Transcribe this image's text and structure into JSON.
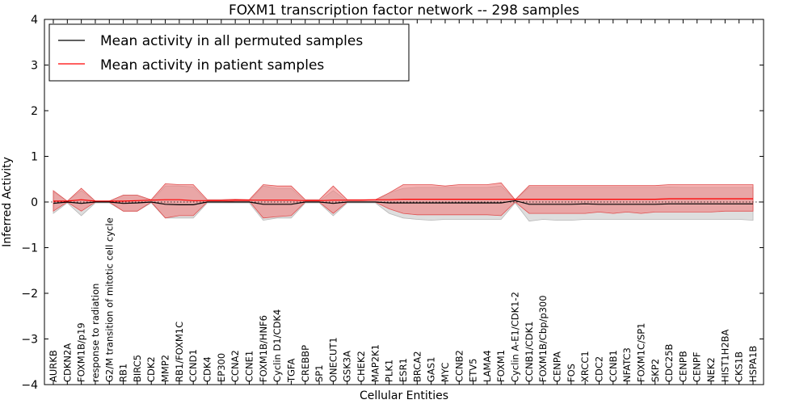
{
  "chart_data": {
    "type": "line",
    "title": "FOXM1 transcription factor network -- 298 samples",
    "xlabel": "Cellular Entities",
    "ylabel": "Inferred Activity",
    "ylim": [
      -4,
      4
    ],
    "yticks": [
      -4,
      -3,
      -2,
      -1,
      0,
      1,
      2,
      3,
      4
    ],
    "ytick_labels": [
      "−4",
      "−3",
      "−2",
      "−1",
      "0",
      "1",
      "2",
      "3",
      "4"
    ],
    "legend_position": "top-left",
    "categories": [
      "AURKB",
      "CDKN2A",
      "FOXM1B/p19",
      "response to radiation",
      "G2/M transition of mitotic cell cycle",
      "RB1",
      "BIRC5",
      "CDK2",
      "MMP2",
      "RB1/FOXM1C",
      "CCND1",
      "CDK4",
      "EP300",
      "CCNA2",
      "CCNE1",
      "FOXM1B/HNF6",
      "Cyclin D1/CDK4",
      "TGFA",
      "CREBBP",
      "SP1",
      "ONECUT1",
      "GSK3A",
      "CHEK2",
      "MAP2K1",
      "PLK1",
      "ESR1",
      "BRCA2",
      "GAS1",
      "MYC",
      "CCNB2",
      "ETV5",
      "LAMA4",
      "FOXM1",
      "Cyclin A-E1/CDK1-2",
      "CCNB1/CDK1",
      "FOXM1B/Cbp/p300",
      "CENPA",
      "FOS",
      "XRCC1",
      "CDC2",
      "CCNB1",
      "NFATC3",
      "FOXM1C/SP1",
      "SKP2",
      "CDC25B",
      "CENPB",
      "CENPF",
      "NEK2",
      "HIST1H2BA",
      "CKS1B",
      "HSPA1B"
    ],
    "series": [
      {
        "name": "Mean activity in all permuted samples",
        "color": "#000000",
        "values": [
          -0.03,
          0.0,
          -0.03,
          0.0,
          0.0,
          -0.03,
          -0.02,
          0.0,
          -0.05,
          -0.06,
          -0.06,
          0.0,
          0.0,
          0.0,
          0.0,
          -0.05,
          -0.05,
          -0.05,
          0.0,
          0.0,
          -0.03,
          0.0,
          0.0,
          0.0,
          -0.02,
          -0.02,
          -0.02,
          -0.02,
          -0.02,
          -0.02,
          -0.02,
          -0.02,
          -0.02,
          0.03,
          -0.05,
          -0.05,
          -0.05,
          -0.05,
          -0.04,
          -0.05,
          -0.05,
          -0.05,
          -0.05,
          -0.05,
          -0.04,
          -0.04,
          -0.04,
          -0.04,
          -0.04,
          -0.04,
          -0.04
        ],
        "band_lower": [
          -0.25,
          -0.02,
          -0.3,
          -0.02,
          -0.02,
          -0.2,
          -0.2,
          -0.02,
          -0.35,
          -0.35,
          -0.35,
          -0.02,
          -0.02,
          -0.02,
          -0.02,
          -0.4,
          -0.35,
          -0.35,
          -0.02,
          -0.02,
          -0.3,
          -0.02,
          -0.02,
          -0.02,
          -0.25,
          -0.35,
          -0.38,
          -0.4,
          -0.38,
          -0.38,
          -0.38,
          -0.38,
          -0.38,
          -0.02,
          -0.42,
          -0.38,
          -0.4,
          -0.4,
          -0.38,
          -0.38,
          -0.38,
          -0.38,
          -0.38,
          -0.38,
          -0.38,
          -0.38,
          -0.38,
          -0.38,
          -0.38,
          -0.38,
          -0.4
        ],
        "band_upper": [
          0.22,
          0.02,
          0.25,
          0.02,
          0.02,
          0.15,
          0.15,
          0.02,
          0.35,
          0.35,
          0.33,
          0.02,
          0.02,
          0.02,
          0.02,
          0.35,
          0.3,
          0.3,
          0.02,
          0.02,
          0.25,
          0.02,
          0.02,
          0.02,
          0.2,
          0.3,
          0.32,
          0.32,
          0.32,
          0.32,
          0.32,
          0.32,
          0.35,
          0.05,
          0.32,
          0.32,
          0.32,
          0.32,
          0.32,
          0.32,
          0.32,
          0.32,
          0.32,
          0.32,
          0.33,
          0.32,
          0.32,
          0.32,
          0.32,
          0.32,
          0.32
        ]
      },
      {
        "name": "Mean activity in patient samples",
        "color": "#ff0000",
        "values": [
          0.02,
          0.02,
          0.05,
          0.02,
          0.02,
          0.02,
          0.03,
          0.04,
          0.05,
          0.05,
          0.03,
          0.03,
          0.03,
          0.04,
          0.04,
          0.04,
          0.04,
          0.04,
          0.03,
          0.03,
          0.04,
          0.04,
          0.04,
          0.05,
          0.05,
          0.06,
          0.06,
          0.06,
          0.06,
          0.06,
          0.06,
          0.06,
          0.06,
          0.06,
          0.06,
          0.06,
          0.06,
          0.06,
          0.06,
          0.06,
          0.06,
          0.06,
          0.06,
          0.06,
          0.07,
          0.07,
          0.07,
          0.07,
          0.07,
          0.07,
          0.07
        ],
        "band_lower": [
          -0.2,
          0.0,
          -0.2,
          0.0,
          0.0,
          -0.2,
          -0.2,
          0.0,
          -0.35,
          -0.3,
          -0.3,
          0.0,
          0.0,
          0.02,
          0.02,
          -0.35,
          -0.32,
          -0.3,
          0.0,
          0.0,
          -0.25,
          0.0,
          0.0,
          0.0,
          -0.15,
          -0.25,
          -0.28,
          -0.28,
          -0.28,
          -0.28,
          -0.28,
          -0.28,
          -0.3,
          0.0,
          -0.25,
          -0.25,
          -0.25,
          -0.25,
          -0.25,
          -0.22,
          -0.25,
          -0.22,
          -0.25,
          -0.22,
          -0.22,
          -0.22,
          -0.22,
          -0.22,
          -0.2,
          -0.2,
          -0.2
        ],
        "band_upper": [
          0.25,
          0.02,
          0.3,
          0.02,
          0.02,
          0.15,
          0.15,
          0.05,
          0.4,
          0.38,
          0.38,
          0.05,
          0.05,
          0.06,
          0.05,
          0.38,
          0.35,
          0.35,
          0.05,
          0.05,
          0.35,
          0.05,
          0.05,
          0.05,
          0.2,
          0.38,
          0.38,
          0.38,
          0.35,
          0.38,
          0.38,
          0.38,
          0.42,
          0.05,
          0.36,
          0.36,
          0.36,
          0.36,
          0.36,
          0.36,
          0.36,
          0.36,
          0.36,
          0.36,
          0.38,
          0.38,
          0.38,
          0.38,
          0.38,
          0.38,
          0.38
        ]
      }
    ]
  }
}
